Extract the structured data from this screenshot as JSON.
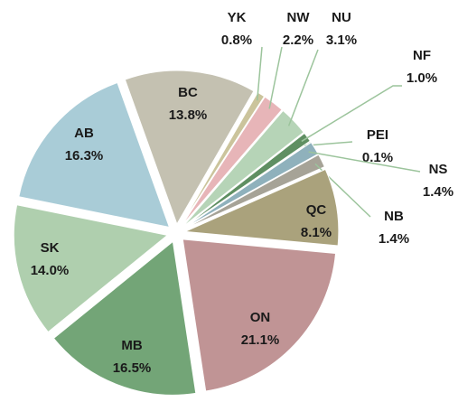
{
  "chart_data": {
    "type": "pie",
    "categories": [
      "YK",
      "NW",
      "NU",
      "NF",
      "PEI",
      "NS",
      "NB",
      "QC",
      "ON",
      "MB",
      "SK",
      "AB",
      "BC"
    ],
    "values": [
      0.8,
      2.2,
      3.1,
      1.0,
      0.1,
      1.4,
      1.4,
      8.1,
      21.1,
      16.5,
      14.0,
      16.3,
      13.8
    ],
    "value_labels": [
      "0.8%",
      "2.2%",
      "3.1%",
      "1.0%",
      "0.1%",
      "1.4%",
      "1.4%",
      "8.1%",
      "21.1%",
      "16.5%",
      "14.0%",
      "16.3%",
      "13.8%"
    ],
    "colors": [
      "#cbc49c",
      "#e7b5b8",
      "#b6d4b7",
      "#5f8f62",
      "#4f7f55",
      "#8fb1bc",
      "#a6a397",
      "#aaa27c",
      "#c09495",
      "#73a577",
      "#afcfae",
      "#a9ccd7",
      "#c4c1b1"
    ]
  }
}
